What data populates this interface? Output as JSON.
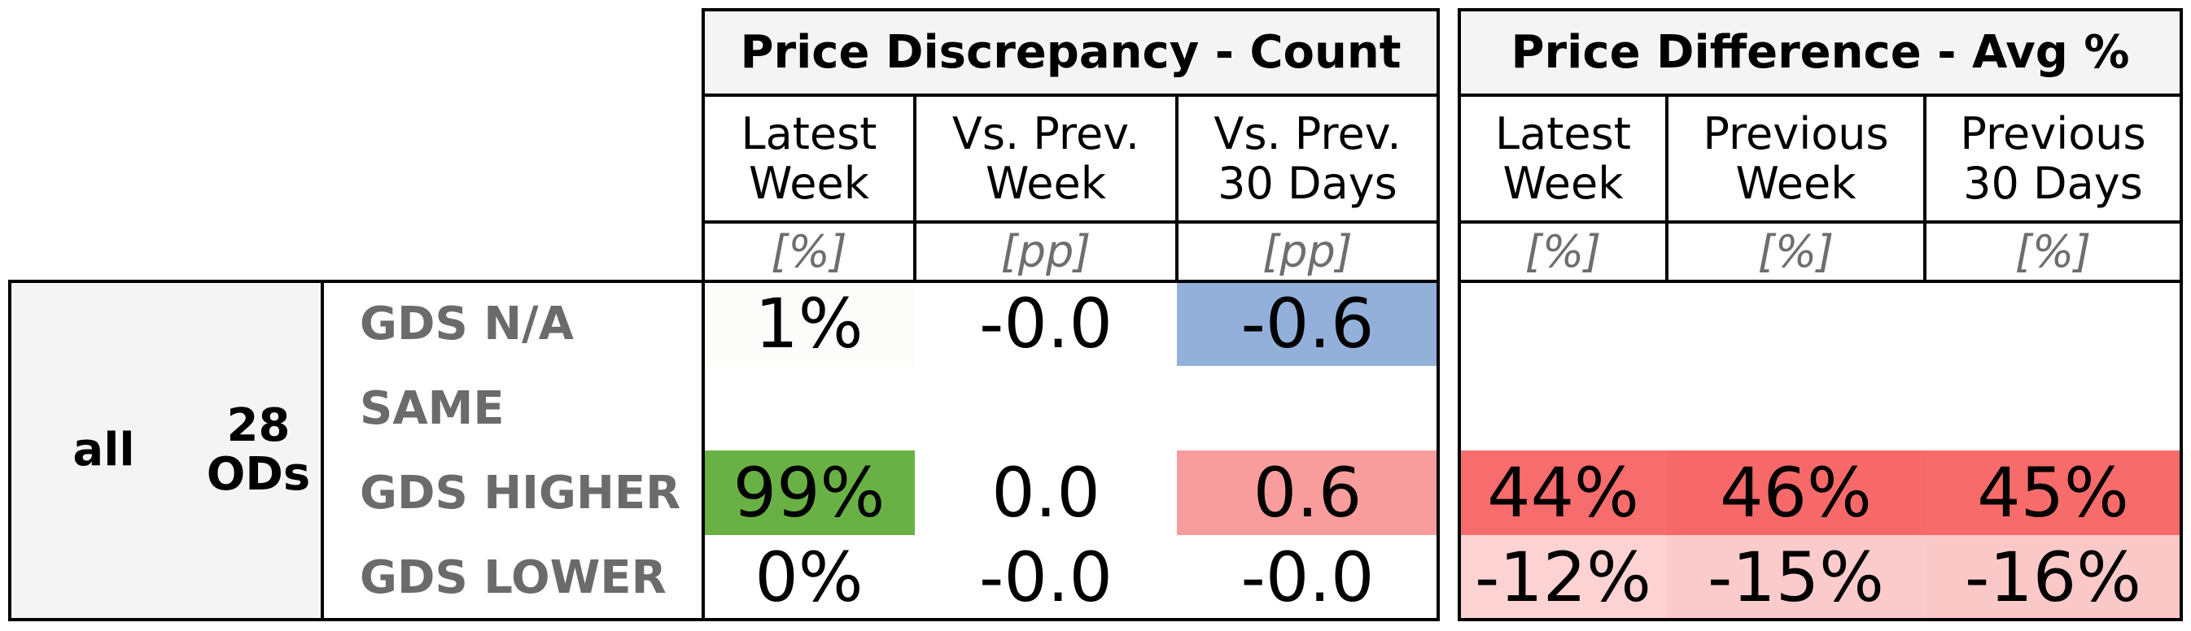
{
  "chart_data": {
    "type": "table",
    "groups": [
      {
        "title": "Price Discrepancy - Count",
        "columns": [
          {
            "header": "Latest\nWeek",
            "unit": "[%]"
          },
          {
            "header": "Vs. Prev.\nWeek",
            "unit": "[pp]"
          },
          {
            "header": "Vs. Prev.\n30 Days",
            "unit": "[pp]"
          }
        ]
      },
      {
        "title": "Price Difference - Avg %",
        "columns": [
          {
            "header": "Latest\nWeek",
            "unit": "[%]"
          },
          {
            "header": "Previous\nWeek",
            "unit": "[%]"
          },
          {
            "header": "Previous\n30 Days",
            "unit": "[%]"
          }
        ]
      }
    ],
    "segment": "all",
    "segment_count": "28\nODs",
    "rows": [
      {
        "label": "GDS N/A",
        "cells": [
          {
            "text": "1%",
            "color": "#fcfcfa"
          },
          {
            "text": "-0.0",
            "color": ""
          },
          {
            "text": "-0.6",
            "color": "#92b0d9"
          },
          {
            "text": "",
            "color": ""
          },
          {
            "text": "",
            "color": ""
          },
          {
            "text": "",
            "color": ""
          }
        ]
      },
      {
        "label": "SAME",
        "cells": [
          {
            "text": "",
            "color": ""
          },
          {
            "text": "",
            "color": ""
          },
          {
            "text": "",
            "color": ""
          },
          {
            "text": "",
            "color": ""
          },
          {
            "text": "",
            "color": ""
          },
          {
            "text": "",
            "color": ""
          }
        ]
      },
      {
        "label": "GDS HIGHER",
        "cells": [
          {
            "text": "99%",
            "color": "#69b144"
          },
          {
            "text": "0.0",
            "color": ""
          },
          {
            "text": "0.6",
            "color": "#f99c9c"
          },
          {
            "text": "44%",
            "color": "#f76c6c"
          },
          {
            "text": "46%",
            "color": "#f76969"
          },
          {
            "text": "45%",
            "color": "#f76b6b"
          }
        ]
      },
      {
        "label": "GDS LOWER",
        "cells": [
          {
            "text": "0%",
            "color": ""
          },
          {
            "text": "-0.0",
            "color": ""
          },
          {
            "text": "-0.0",
            "color": ""
          },
          {
            "text": "-12%",
            "color": "#fcd2d2"
          },
          {
            "text": "-15%",
            "color": "#fbcaca"
          },
          {
            "text": "-16%",
            "color": "#fbc8c8"
          }
        ]
      }
    ]
  }
}
